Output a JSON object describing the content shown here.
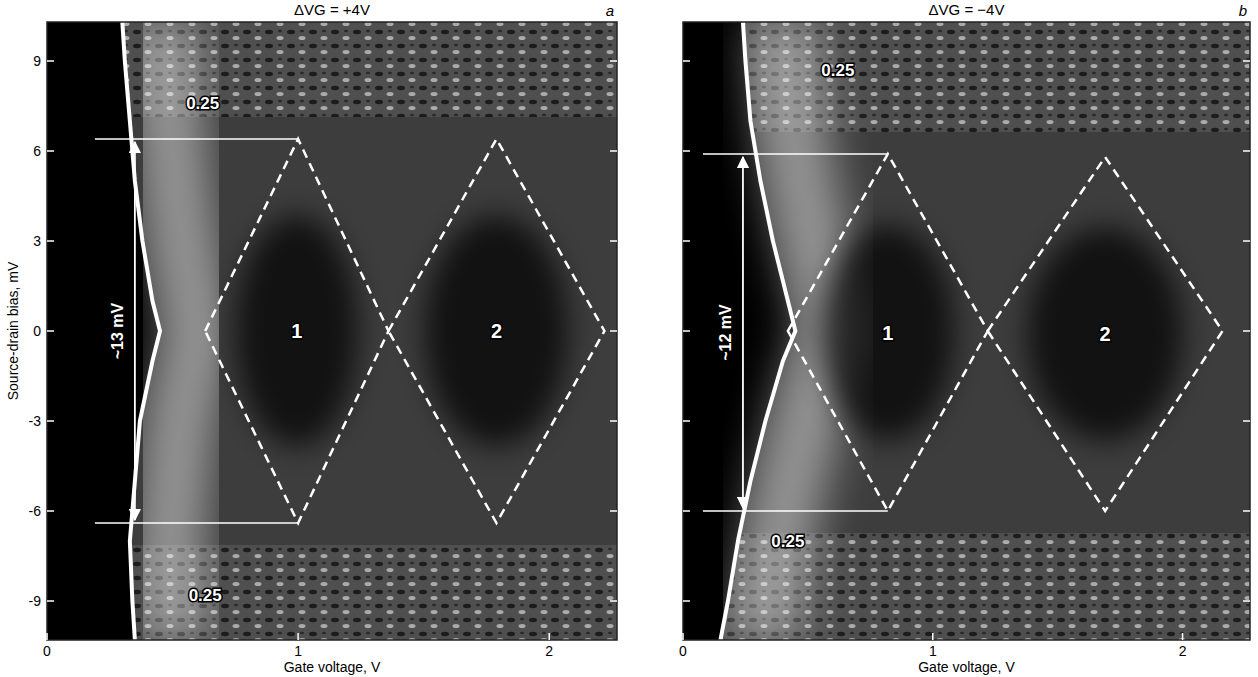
{
  "chart_data": [
    {
      "type": "stability_diagram",
      "title": "ΔVG = +4V",
      "panel_label": "a",
      "x_label": "Gate voltage, V",
      "y_label": "Source-drain bias, mV",
      "xlim": [
        0,
        2.27
      ],
      "xticks": [
        0,
        1,
        2
      ],
      "ylim": [
        -10.3,
        10.3
      ],
      "yticks": [
        -9,
        -6,
        -3,
        0,
        3,
        6,
        9
      ],
      "color": "#ffffff",
      "x": [
        0.3,
        0.31,
        0.33,
        0.35,
        0.38,
        0.42,
        0.45,
        0.42,
        0.37,
        0.35,
        0.33,
        0.34,
        0.35
      ],
      "values": [
        10.3,
        9,
        7,
        5,
        3,
        1,
        0,
        -1,
        -3,
        -5,
        -7,
        -9,
        -10.3
      ],
      "diamonds": [
        {
          "label": "1",
          "x": [
            0.63,
            1.0,
            1.36,
            1.0
          ],
          "y": [
            0,
            6.4,
            0,
            -6.4
          ]
        },
        {
          "label": "2",
          "x": [
            1.36,
            1.79,
            2.22,
            1.79
          ],
          "y": [
            0,
            6.4,
            0,
            -6.4
          ]
        }
      ],
      "bias_gap": {
        "label": "~13 mV",
        "x": 0.35,
        "from": -6.4,
        "to": 6.4
      },
      "annotations": [
        {
          "text": "0.25",
          "x": 0.62,
          "y": 7.6
        },
        {
          "text": "0.25",
          "x": 0.63,
          "y": -8.8
        }
      ]
    },
    {
      "type": "stability_diagram",
      "title": "ΔVG = −4V",
      "panel_label": "b",
      "x_label": "Gate voltage, V",
      "xlim": [
        0,
        2.27
      ],
      "xticks": [
        0,
        1,
        2
      ],
      "ylim": [
        -10.3,
        10.3
      ],
      "yticks": [
        -9,
        -6,
        -3,
        0,
        3,
        6,
        9
      ],
      "tick_labels": "x",
      "color": "#ffffff",
      "x": [
        0.24,
        0.25,
        0.27,
        0.31,
        0.36,
        0.42,
        0.45,
        0.4,
        0.33,
        0.27,
        0.22,
        0.18,
        0.15
      ],
      "values": [
        10.3,
        9,
        7,
        5,
        3,
        1,
        0,
        -1,
        -3,
        -5,
        -7,
        -9,
        -10.3
      ],
      "diamonds": [
        {
          "label": "1",
          "x": [
            0.42,
            0.82,
            1.22,
            0.82
          ],
          "y": [
            0,
            5.9,
            0,
            -6.0
          ]
        },
        {
          "label": "2",
          "x": [
            1.22,
            1.69,
            2.16,
            1.69
          ],
          "y": [
            0,
            5.8,
            0,
            -6.0
          ]
        }
      ],
      "bias_gap": {
        "label": "~12 mV",
        "x": 0.24,
        "from": -6.0,
        "to": 5.9
      },
      "annotations": [
        {
          "text": "0.25",
          "x": 0.62,
          "y": 8.7
        },
        {
          "text": "0.25",
          "x": 0.42,
          "y": -7.0
        }
      ]
    }
  ]
}
